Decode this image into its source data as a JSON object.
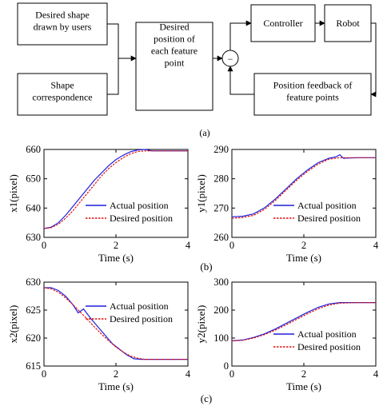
{
  "block_diagram": {
    "box_user_shape": "Desired shape\ndrawn by users",
    "box_correspondence": "Shape\ncorrespondence",
    "box_desired_position": "Desired\nposition of\neach feature\npoint",
    "box_controller": "Controller",
    "box_robot": "Robot",
    "box_feedback": "Position feedback of\nfeature points",
    "summing_sign": "−",
    "caption": "(a)"
  },
  "captions": {
    "b": "(b)",
    "c": "(c)"
  },
  "colors": {
    "actual": "#1f1fdc",
    "desired": "#e01010"
  },
  "chart_data": [
    {
      "type": "line",
      "id": "x1",
      "xlabel": "Time (s)",
      "ylabel": "x1(pixel)",
      "xlim": [
        0,
        4
      ],
      "ylim": [
        630,
        660
      ],
      "xticks": [
        0,
        2,
        4
      ],
      "yticks": [
        630,
        640,
        650,
        660
      ],
      "legend_position": "bottom-right",
      "series": [
        {
          "name": "Actual position",
          "style": "solid",
          "x": [
            0,
            0.2,
            0.4,
            0.6,
            0.8,
            1.0,
            1.2,
            1.4,
            1.6,
            1.8,
            2.0,
            2.2,
            2.4,
            2.6,
            2.8,
            3.0,
            3.5,
            4.0
          ],
          "y": [
            633,
            633.5,
            635,
            637.5,
            640.5,
            643.5,
            646.5,
            649.5,
            652,
            654.5,
            656.5,
            658,
            659.2,
            659.8,
            660,
            659.5,
            659.5,
            659.5
          ]
        },
        {
          "name": "Desired position",
          "style": "dashed",
          "x": [
            0,
            0.2,
            0.4,
            0.6,
            0.8,
            1.0,
            1.2,
            1.4,
            1.6,
            1.8,
            2.0,
            2.2,
            2.4,
            2.6,
            2.8,
            3.0,
            3.5,
            4.0
          ],
          "y": [
            633,
            633.3,
            634.5,
            636.5,
            639,
            642,
            645,
            648,
            651,
            653.5,
            655.5,
            657.2,
            658.5,
            659.3,
            659.5,
            659.5,
            659.5,
            659.5
          ]
        }
      ]
    },
    {
      "type": "line",
      "id": "y1",
      "xlabel": "Time (s)",
      "ylabel": "y1(pixel)",
      "xlim": [
        0,
        4
      ],
      "ylim": [
        260,
        290
      ],
      "xticks": [
        0,
        2,
        4
      ],
      "yticks": [
        260,
        270,
        280,
        290
      ],
      "legend_position": "bottom-right",
      "series": [
        {
          "name": "Actual position",
          "style": "solid",
          "x": [
            0,
            0.3,
            0.6,
            0.9,
            1.2,
            1.5,
            1.8,
            2.1,
            2.4,
            2.7,
            2.9,
            3.0,
            3.1,
            3.5,
            4.0
          ],
          "y": [
            267,
            267.2,
            268,
            270,
            273,
            276.5,
            280,
            283,
            285.5,
            287,
            287.5,
            288.2,
            287,
            287.2,
            287.2
          ]
        },
        {
          "name": "Desired position",
          "style": "dashed",
          "x": [
            0,
            0.3,
            0.6,
            0.9,
            1.2,
            1.5,
            1.8,
            2.1,
            2.4,
            2.7,
            3.0,
            3.5,
            4.0
          ],
          "y": [
            266.5,
            266.8,
            267.5,
            269.5,
            272.5,
            276,
            279.5,
            282.5,
            285,
            286.7,
            287.2,
            287.2,
            287.2
          ]
        }
      ]
    },
    {
      "type": "line",
      "id": "x2",
      "xlabel": "Time (s)",
      "ylabel": "x2(pixel)",
      "xlim": [
        0,
        4
      ],
      "ylim": [
        615,
        630
      ],
      "xticks": [
        0,
        2,
        4
      ],
      "yticks": [
        615,
        620,
        625,
        630
      ],
      "legend_position": "top-right",
      "series": [
        {
          "name": "Actual position",
          "style": "solid",
          "x": [
            0,
            0.2,
            0.4,
            0.6,
            0.8,
            0.95,
            1.1,
            1.3,
            1.5,
            1.7,
            1.9,
            2.1,
            2.3,
            2.5,
            2.7,
            3.0,
            4.0
          ],
          "y": [
            629,
            629,
            628.5,
            627.5,
            626,
            624.5,
            625.2,
            623.5,
            622,
            620.5,
            619,
            618,
            617,
            616.3,
            616.2,
            616.2,
            616.2
          ]
        },
        {
          "name": "Desired position",
          "style": "dashed",
          "x": [
            0,
            0.2,
            0.4,
            0.6,
            0.8,
            1.0,
            1.2,
            1.4,
            1.6,
            1.8,
            2.0,
            2.2,
            2.4,
            2.6,
            2.8,
            3.0,
            4.0
          ],
          "y": [
            629,
            628.8,
            628.2,
            627.2,
            626,
            624.7,
            623.4,
            622,
            620.7,
            619.5,
            618.4,
            617.5,
            616.8,
            616.4,
            616.2,
            616.2,
            616.2
          ]
        }
      ]
    },
    {
      "type": "line",
      "id": "y2",
      "xlabel": "Time (s)",
      "ylabel": "y2(pixel)",
      "xlim": [
        0,
        4
      ],
      "ylim": [
        0,
        300
      ],
      "xticks": [
        0,
        2,
        4
      ],
      "yticks": [
        0,
        100,
        200,
        300
      ],
      "legend_position": "bottom-right",
      "series": [
        {
          "name": "Actual position",
          "style": "solid",
          "x": [
            0,
            0.3,
            0.6,
            0.9,
            1.2,
            1.5,
            1.8,
            2.1,
            2.4,
            2.7,
            3.0,
            3.5,
            4.0
          ],
          "y": [
            90,
            93,
            102,
            115,
            132,
            152,
            172,
            192,
            210,
            222,
            227,
            227,
            227
          ]
        },
        {
          "name": "Desired position",
          "style": "dashed",
          "x": [
            0,
            0.3,
            0.6,
            0.9,
            1.2,
            1.5,
            1.8,
            2.1,
            2.4,
            2.7,
            3.0,
            3.5,
            4.0
          ],
          "y": [
            90,
            92,
            100,
            112,
            128,
            147,
            167,
            187,
            205,
            218,
            225,
            227,
            227
          ]
        }
      ]
    }
  ]
}
